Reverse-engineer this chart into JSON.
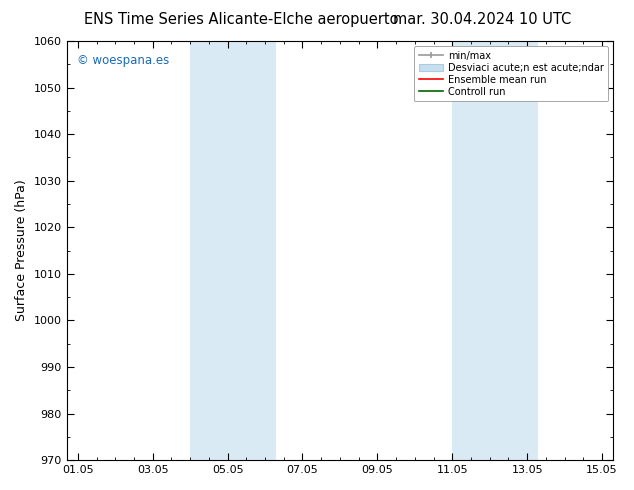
{
  "title_left": "ENS Time Series Alicante-Elche aeropuerto",
  "title_right": "mar. 30.04.2024 10 UTC",
  "ylabel": "Surface Pressure (hPa)",
  "ylim": [
    970,
    1060
  ],
  "yticks": [
    970,
    980,
    990,
    1000,
    1010,
    1020,
    1030,
    1040,
    1050,
    1060
  ],
  "xlabel_ticks": [
    "01.05",
    "03.05",
    "05.05",
    "07.05",
    "09.05",
    "11.05",
    "13.05",
    "15.05"
  ],
  "x_tick_positions": [
    0,
    2,
    4,
    6,
    8,
    10,
    12,
    14
  ],
  "xlim": [
    -0.3,
    14.3
  ],
  "shaded_regions": [
    {
      "xmin": 3.0,
      "xmax": 5.3,
      "color": "#daeaf5"
    },
    {
      "xmin": 10.0,
      "xmax": 12.3,
      "color": "#daeaf5"
    }
  ],
  "watermark_text": "© woespana.es",
  "watermark_color": "#1a6bb5",
  "legend_line1_label": "min/max",
  "legend_line2_label": "Desviaci acute;n est acute;ndar",
  "legend_line3_label": "Ensemble mean run",
  "legend_line4_label": "Controll run",
  "background_color": "#ffffff",
  "title_fontsize": 10.5,
  "tick_fontsize": 8,
  "label_fontsize": 9
}
